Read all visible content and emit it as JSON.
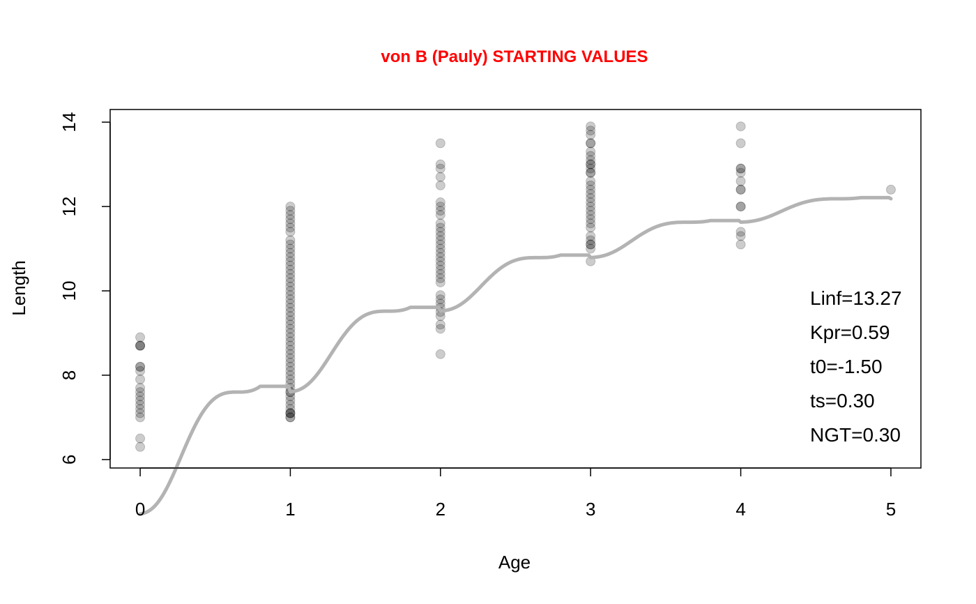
{
  "chart_data": {
    "type": "scatter",
    "title": "von B (Pauly) STARTING VALUES",
    "title_color": "#ff0000",
    "xlabel": "Age",
    "ylabel": "Length",
    "xlim": [
      -0.2,
      5.2
    ],
    "ylim": [
      5.8,
      14.3
    ],
    "x_ticks": [
      0,
      1,
      2,
      3,
      4,
      5
    ],
    "y_ticks": [
      6,
      8,
      10,
      12,
      14
    ],
    "point_color": "#000000",
    "point_opacity": 0.2,
    "curve_color": "#b3b3b3",
    "points": [
      {
        "age": 0,
        "lengths": [
          6.3,
          6.5,
          7.0,
          7.1,
          7.2,
          7.3,
          7.4,
          7.5,
          7.6,
          7.7,
          7.9,
          8.1,
          8.2,
          8.2,
          8.7,
          8.7,
          8.7,
          8.9
        ]
      },
      {
        "age": 1,
        "lengths": [
          7.0,
          7.0,
          7.1,
          7.1,
          7.1,
          7.2,
          7.3,
          7.4,
          7.5,
          7.6,
          7.6,
          7.7,
          7.8,
          7.9,
          8.0,
          8.1,
          8.2,
          8.3,
          8.4,
          8.5,
          8.6,
          8.7,
          8.8,
          8.9,
          9.0,
          9.1,
          9.2,
          9.3,
          9.4,
          9.5,
          9.6,
          9.7,
          9.8,
          9.9,
          10.0,
          10.1,
          10.2,
          10.3,
          10.4,
          10.5,
          10.6,
          10.7,
          10.8,
          10.9,
          11.0,
          11.1,
          11.2,
          11.4,
          11.5,
          11.6,
          11.7,
          11.8,
          11.9,
          12.0
        ]
      },
      {
        "age": 2,
        "lengths": [
          8.5,
          9.1,
          9.2,
          9.4,
          9.5,
          9.6,
          9.7,
          9.8,
          9.9,
          10.2,
          10.3,
          10.4,
          10.5,
          10.6,
          10.7,
          10.8,
          10.9,
          11.0,
          11.1,
          11.2,
          11.3,
          11.4,
          11.5,
          11.6,
          11.8,
          11.9,
          12.0,
          12.1,
          12.5,
          12.7,
          12.9,
          13.0,
          13.5
        ]
      },
      {
        "age": 3,
        "lengths": [
          10.7,
          11.0,
          11.1,
          11.1,
          11.2,
          11.3,
          11.5,
          11.6,
          11.7,
          11.8,
          11.9,
          12.0,
          12.1,
          12.2,
          12.3,
          12.4,
          12.5,
          12.6,
          12.8,
          12.8,
          12.9,
          13.0,
          13.0,
          13.1,
          13.2,
          13.3,
          13.5,
          13.5,
          13.7,
          13.8,
          13.9
        ]
      },
      {
        "age": 4,
        "lengths": [
          11.1,
          11.3,
          11.4,
          12.0,
          12.0,
          12.4,
          12.4,
          12.6,
          12.8,
          12.9,
          12.9,
          13.5,
          13.9
        ]
      },
      {
        "age": 5,
        "lengths": [
          12.4
        ]
      }
    ],
    "params": {
      "Linf": 13.27,
      "Kpr": 0.59,
      "t0": -1.5,
      "ts": 0.3,
      "NGT": 0.3
    },
    "param_labels": [
      "Linf=13.27",
      "Kpr=0.59",
      "t0=-1.50",
      "ts=0.30",
      "NGT=0.30"
    ],
    "curve_xrange": [
      0,
      5
    ]
  }
}
